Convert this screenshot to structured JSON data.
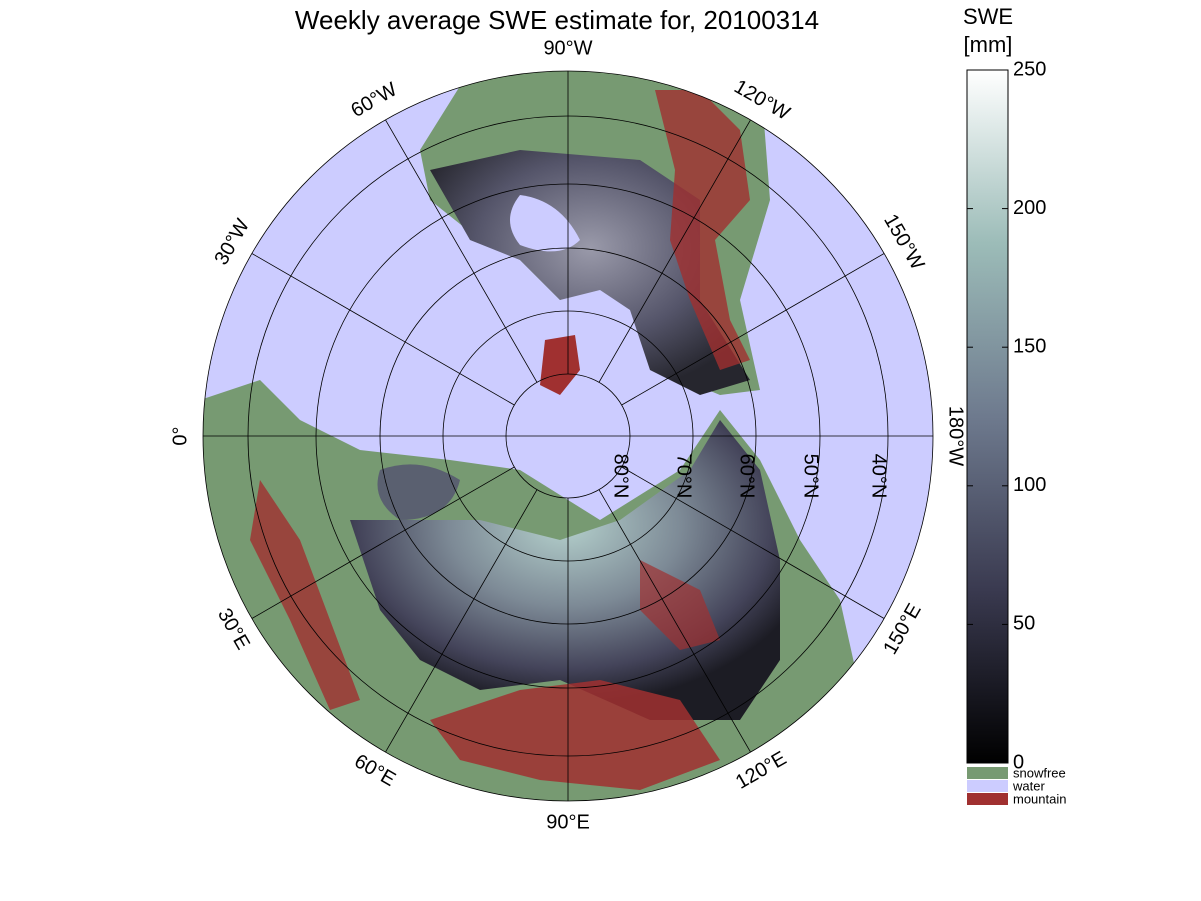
{
  "title": "Weekly average SWE estimate for, 20100314",
  "map": {
    "longitude_labels": [
      "90°W",
      "120°W",
      "150°W",
      "180°W",
      "150°E",
      "120°E",
      "90°E",
      "60°E",
      "30°E",
      "0°",
      "30°W",
      "60°W"
    ],
    "latitude_labels": [
      "80°N",
      "70°N",
      "60°N",
      "50°N",
      "40°N"
    ]
  },
  "colorbar": {
    "title_lines": [
      "SWE",
      "[mm]"
    ],
    "range": [
      0,
      250
    ],
    "ticks": [
      0,
      50,
      100,
      150,
      200,
      250
    ]
  },
  "legend": [
    {
      "label": "snowfree",
      "color": "#779a72"
    },
    {
      "label": "water",
      "color": "#ccccff"
    },
    {
      "label": "mountain",
      "color": "#a03030"
    }
  ]
}
